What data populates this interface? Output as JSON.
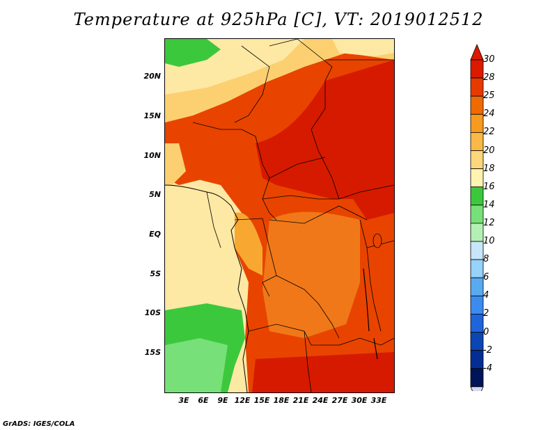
{
  "title": "Temperature at 925hPa [C], VT: 2019012512",
  "credit": "GrADS: IGES/COLA",
  "axes": {
    "lat_labels": [
      "20N",
      "15N",
      "10N",
      "5N",
      "EQ",
      "5S",
      "10S",
      "15S"
    ],
    "lon_labels": [
      "3E",
      "6E",
      "9E",
      "12E",
      "15E",
      "18E",
      "21E",
      "24E",
      "27E",
      "30E",
      "33E"
    ]
  },
  "colorbar": {
    "labels": [
      "30",
      "28",
      "25",
      "24",
      "22",
      "20",
      "18",
      "16",
      "14",
      "12",
      "10",
      "8",
      "6",
      "4",
      "2",
      "0",
      "-2",
      "-4"
    ],
    "colors": [
      "#db1a00",
      "#e83a00",
      "#f06a00",
      "#f89a1e",
      "#fab846",
      "#fcd67a",
      "#fff3b0",
      "#3cc83c",
      "#78e078",
      "#b4f0b4",
      "#c8e6fa",
      "#96d2fa",
      "#5aaaf0",
      "#3c8cf0",
      "#1e64dc",
      "#0a46b4",
      "#052d96",
      "#00145a"
    ]
  },
  "map_colors": {
    "hot": "#d61a00",
    "warm": "#e84400",
    "orange": "#f07818",
    "lightorange": "#f8a830",
    "tan": "#fcd070",
    "pale": "#fde8a4",
    "green": "#3cc83c",
    "lightgreen": "#78e078"
  }
}
